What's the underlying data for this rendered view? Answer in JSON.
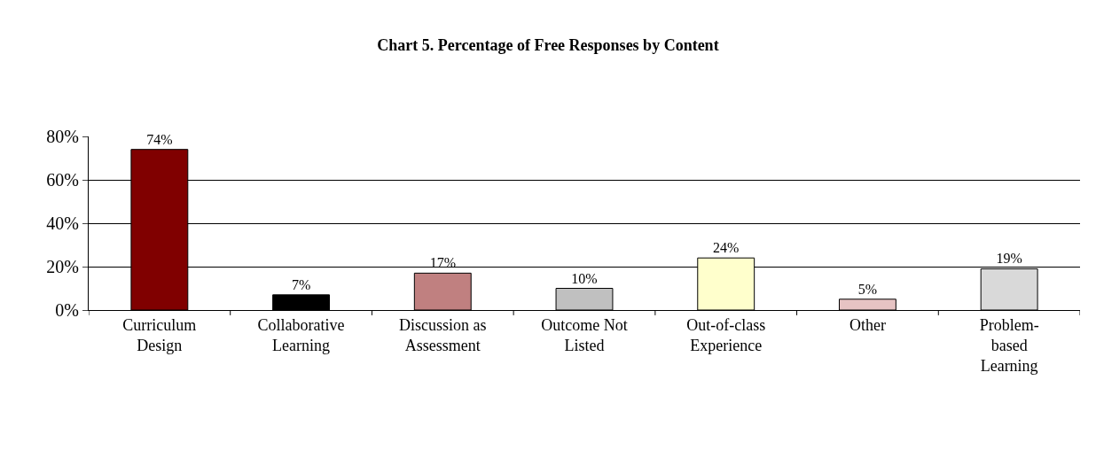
{
  "chart_data": {
    "type": "bar",
    "title": "Chart 5. Percentage of Free Responses by Content",
    "categories": [
      "Curriculum\nDesign",
      "Collaborative\nLearning",
      "Discussion as\nAssessment",
      "Outcome Not\nListed",
      "Out-of-class\nExperience",
      "Other",
      "Problem-\nbased\nLearning"
    ],
    "values": [
      74,
      7,
      17,
      10,
      24,
      5,
      19
    ],
    "colors": [
      "#800000",
      "#000000",
      "#c08080",
      "#c0c0c0",
      "#ffffcc",
      "#e6c3c3",
      "#d9d9d9"
    ],
    "value_labels": [
      "74%",
      "7%",
      "17%",
      "10%",
      "24%",
      "5%",
      "19%"
    ],
    "ylim": [
      0,
      80
    ],
    "yticks": [
      {
        "value": 0,
        "label": "0%"
      },
      {
        "value": 20,
        "label": "20%"
      },
      {
        "value": 40,
        "label": "40%"
      },
      {
        "value": 60,
        "label": "60%"
      },
      {
        "value": 80,
        "label": "80%"
      }
    ],
    "grid": "y"
  }
}
